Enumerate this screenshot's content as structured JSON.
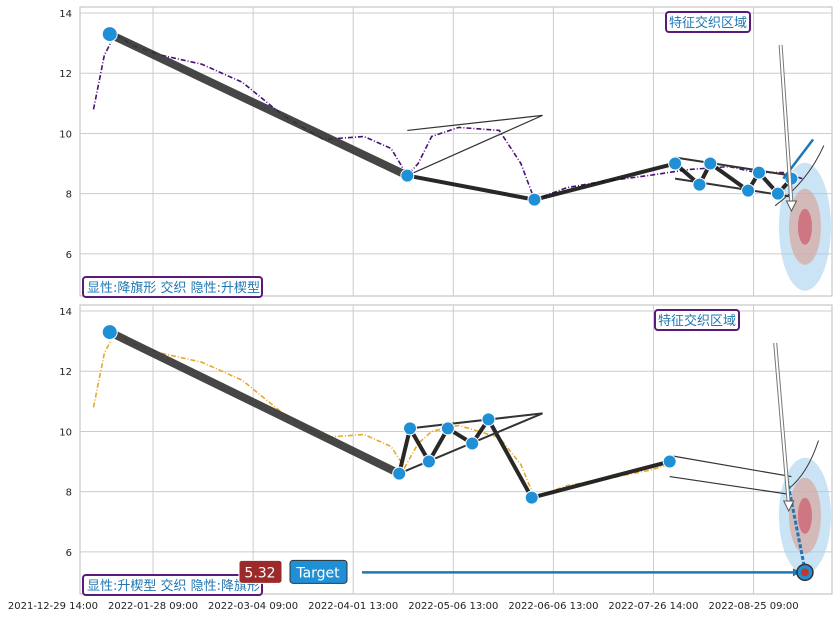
{
  "colors": {
    "series_top": "#4b0f7a",
    "series_bottom": "#e6a92e",
    "marker": "#1f8fd6",
    "trend": "#111111",
    "grid": "#cccccc",
    "box_border": "#5b1a7a",
    "value_badge": "#9b2a2a",
    "target_badge": "#1f8fd6"
  },
  "chart_data": [
    {
      "type": "line",
      "panel": "top",
      "ylim": [
        4.6,
        14.2
      ],
      "yticks": [
        6,
        8,
        10,
        12,
        14
      ],
      "grid": true,
      "annotations": {
        "zone_label": "特征交织区域",
        "pattern_label": "显性:降旗形 交织 隐性:升楔型"
      },
      "series": [
        {
          "x": [
            0,
            4,
            8,
            15,
            25,
            40,
            55,
            70,
            85,
            100,
            110,
            116,
            120,
            125,
            135,
            150,
            158,
            163,
            175,
            188,
            205,
            220,
            235,
            245,
            255,
            262
          ],
          "values": [
            10.8,
            12.6,
            13.3,
            12.9,
            12.6,
            12.3,
            11.7,
            10.6,
            9.8,
            9.9,
            9.5,
            8.6,
            9.0,
            9.9,
            10.2,
            10.1,
            9.0,
            7.8,
            8.2,
            8.4,
            8.6,
            8.8,
            8.9,
            8.7,
            8.7,
            8.5
          ]
        }
      ],
      "trend_points": [
        [
          6,
          13.3
        ],
        [
          116,
          8.6
        ],
        [
          163,
          7.8
        ],
        [
          215,
          9.0
        ],
        [
          224,
          8.3
        ],
        [
          228,
          9.0
        ],
        [
          242,
          8.1
        ],
        [
          246,
          8.7
        ],
        [
          253,
          8.0
        ],
        [
          258,
          8.5
        ]
      ]
    },
    {
      "type": "line",
      "panel": "bottom",
      "ylim": [
        4.6,
        14.2
      ],
      "yticks": [
        6,
        8,
        10,
        12,
        14
      ],
      "grid": true,
      "annotations": {
        "zone_label": "特征交织区域",
        "pattern_label": "显性:升楔型 交织 隐性:降旗形",
        "value_badge": "5.32",
        "target_badge": "Target"
      },
      "series": [
        {
          "x": [
            0,
            4,
            8,
            15,
            25,
            40,
            55,
            70,
            85,
            100,
            110,
            115,
            120,
            125,
            135,
            150,
            158,
            163,
            175,
            188,
            205,
            213
          ],
          "values": [
            10.8,
            12.6,
            13.3,
            12.9,
            12.6,
            12.3,
            11.7,
            10.6,
            9.8,
            9.9,
            9.5,
            8.8,
            9.6,
            10.0,
            10.2,
            9.8,
            8.9,
            7.8,
            8.2,
            8.4,
            8.7,
            8.9
          ]
        }
      ],
      "trend_points": [
        [
          6,
          13.3
        ],
        [
          113,
          8.6
        ],
        [
          117,
          10.1
        ],
        [
          124,
          9.0
        ],
        [
          131,
          10.1
        ],
        [
          140,
          9.6
        ],
        [
          146,
          10.4
        ],
        [
          162,
          7.8
        ],
        [
          213,
          9.0
        ]
      ],
      "target_point": [
        263,
        5.32
      ]
    }
  ],
  "x_axis": {
    "xlim": [
      -5,
      273
    ],
    "ticks": [
      {
        "x": -15,
        "label": "2021-12-29 14:00"
      },
      {
        "x": 22,
        "label": "2022-01-28 09:00"
      },
      {
        "x": 59,
        "label": "2022-03-04 09:00"
      },
      {
        "x": 96,
        "label": "2022-04-01 13:00"
      },
      {
        "x": 133,
        "label": "2022-05-06 13:00"
      },
      {
        "x": 170,
        "label": "2022-06-06 13:00"
      },
      {
        "x": 207,
        "label": "2022-07-26 14:00"
      },
      {
        "x": 244,
        "label": "2022-08-25 09:00"
      }
    ]
  }
}
